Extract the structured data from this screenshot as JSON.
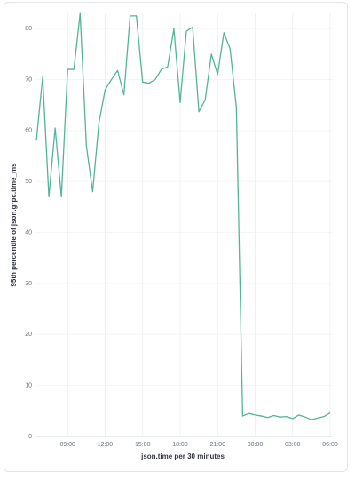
{
  "chart_data": {
    "type": "line",
    "xlabel": "json.time per 30 minutes",
    "ylabel": "95th percentile of json.grpc.time_ms",
    "x": [
      6.5,
      7,
      7.5,
      8,
      8.5,
      9,
      9.5,
      10,
      10.5,
      11,
      11.5,
      12,
      12.5,
      13,
      13.5,
      14,
      14.5,
      15,
      15.5,
      16,
      16.5,
      17,
      17.5,
      18,
      18.5,
      19,
      19.5,
      20,
      20.5,
      21,
      21.5,
      22,
      22.5,
      23,
      23.5,
      24,
      24.5,
      25,
      25.5,
      26,
      26.5,
      27,
      27.5,
      28,
      28.5,
      29,
      29.5,
      30
    ],
    "series": [
      {
        "color": "#54b399",
        "values": [
          58,
          70.5,
          47,
          60.5,
          47,
          72,
          72,
          83,
          57,
          48,
          61.5,
          68,
          70,
          71.8,
          67,
          82.5,
          82.5,
          69.5,
          69.3,
          70,
          72,
          72.5,
          80,
          65.5,
          79.5,
          80.3,
          63.7,
          66,
          75,
          71,
          79.2,
          76,
          64.5,
          4,
          4.5,
          4.2,
          4,
          3.7,
          4.1,
          3.8,
          3.9,
          3.5,
          4.2,
          3.8,
          3.3,
          3.6,
          3.9,
          4.6
        ]
      }
    ],
    "xlim": [
      6.5,
      30
    ],
    "xticks": [
      {
        "value": 9,
        "label": "09:00"
      },
      {
        "value": 12,
        "label": "12:00"
      },
      {
        "value": 15,
        "label": "15:00"
      },
      {
        "value": 18,
        "label": "18:00"
      },
      {
        "value": 21,
        "label": "21:00"
      },
      {
        "value": 24,
        "label": "00:00"
      },
      {
        "value": 27,
        "label": "03:00"
      },
      {
        "value": 30,
        "label": "06:00"
      }
    ],
    "ylim": [
      0,
      83
    ],
    "yticks": [
      0,
      10,
      20,
      30,
      40,
      50,
      60,
      70,
      80
    ],
    "grid": true
  }
}
